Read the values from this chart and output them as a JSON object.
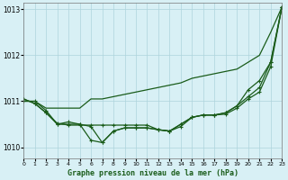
{
  "background_color": "#d8f0f5",
  "grid_color": "#aed4dc",
  "line_color": "#1a5c1a",
  "title": "Graphe pression niveau de la mer (hPa)",
  "xlim": [
    0,
    23
  ],
  "ylim": [
    1009.75,
    1013.15
  ],
  "yticks": [
    1010,
    1011,
    1012,
    1013
  ],
  "xticks": [
    0,
    1,
    2,
    3,
    4,
    5,
    6,
    7,
    8,
    9,
    10,
    11,
    12,
    13,
    14,
    15,
    16,
    17,
    18,
    19,
    20,
    21,
    22,
    23
  ],
  "series": [
    {
      "y": [
        1011.0,
        1011.0,
        1010.85,
        1010.85,
        1010.85,
        1010.85,
        1011.05,
        1011.05,
        1011.1,
        1011.15,
        1011.2,
        1011.25,
        1011.3,
        1011.35,
        1011.4,
        1011.5,
        1011.55,
        1011.6,
        1011.65,
        1011.7,
        1011.85,
        1012.0,
        1012.5,
        1013.05
      ],
      "marker": null,
      "lw": 0.9
    },
    {
      "y": [
        1011.0,
        1011.0,
        1010.8,
        1010.5,
        1010.55,
        1010.5,
        1010.15,
        1010.1,
        1010.35,
        1010.42,
        1010.42,
        1010.42,
        1010.38,
        1010.35,
        1010.5,
        1010.65,
        1010.7,
        1010.7,
        1010.75,
        1010.9,
        1011.25,
        1011.45,
        1011.85,
        1013.05
      ],
      "marker": "+",
      "lw": 0.9
    },
    {
      "y": [
        1011.05,
        1010.95,
        1010.75,
        1010.5,
        1010.5,
        1010.5,
        1010.45,
        1010.1,
        1010.35,
        1010.42,
        1010.42,
        1010.42,
        1010.38,
        1010.35,
        1010.5,
        1010.65,
        1010.7,
        1010.7,
        1010.75,
        1010.9,
        1011.1,
        1011.3,
        1011.85,
        1013.05
      ],
      "marker": "+",
      "lw": 0.9
    },
    {
      "y": [
        1011.05,
        1010.95,
        1010.75,
        1010.52,
        1010.48,
        1010.48,
        1010.48,
        1010.48,
        1010.48,
        1010.48,
        1010.48,
        1010.48,
        1010.38,
        1010.35,
        1010.45,
        1010.65,
        1010.7,
        1010.7,
        1010.72,
        1010.85,
        1011.05,
        1011.2,
        1011.75,
        1013.05
      ],
      "marker": "+",
      "lw": 0.9
    }
  ]
}
